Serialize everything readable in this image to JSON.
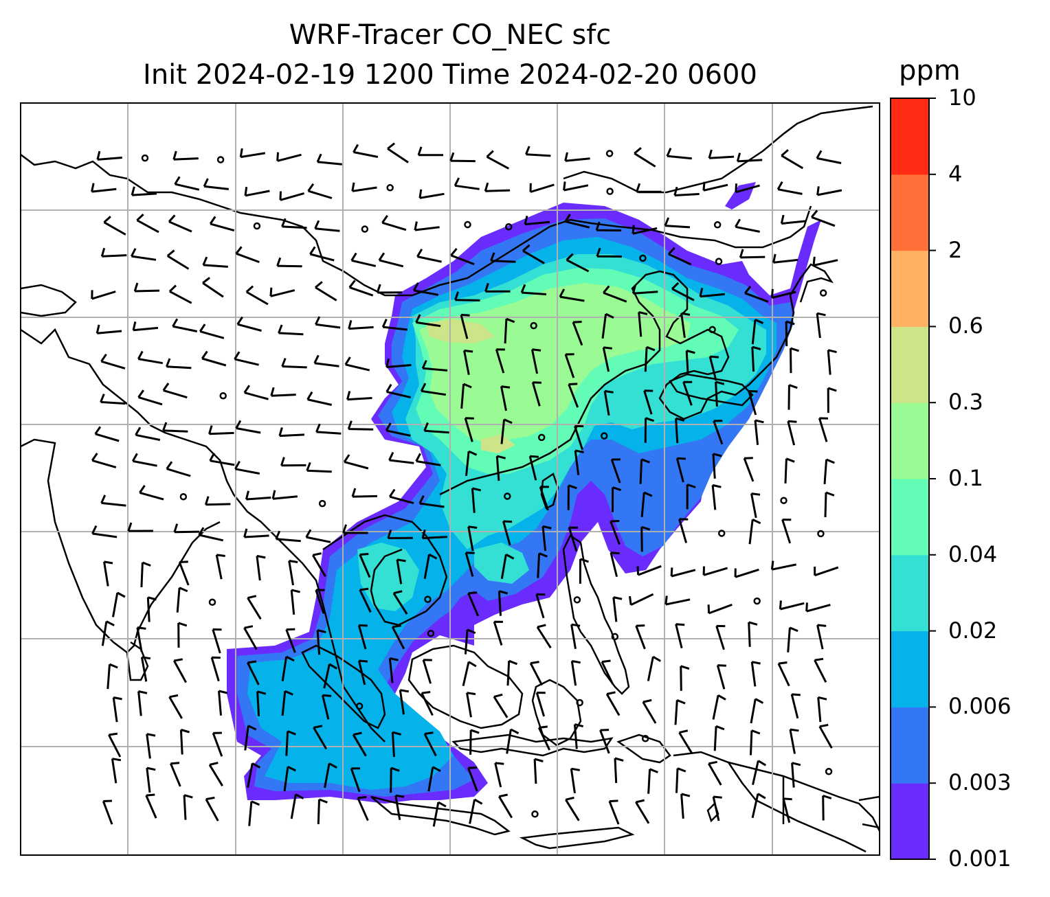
{
  "title": {
    "line1": "WRF-Tracer CO_NEC sfc",
    "line2": "Init 2024-02-19 1200 Time 2024-02-20 0600"
  },
  "colorbar": {
    "unit": "ppm",
    "levels": [
      "0.001",
      "0.003",
      "0.006",
      "0.02",
      "0.04",
      "0.1",
      "0.3",
      "0.6",
      "2",
      "4",
      "10"
    ],
    "colors": [
      "#6a2cfd",
      "#3477f4",
      "#05b3ea",
      "#33e0d3",
      "#62fcb7",
      "#9afb95",
      "#cde489",
      "#ffb061",
      "#ff7039",
      "#ff2b14"
    ]
  },
  "map": {
    "gridlines": true,
    "grid_color": "#b0b0b0"
  }
}
